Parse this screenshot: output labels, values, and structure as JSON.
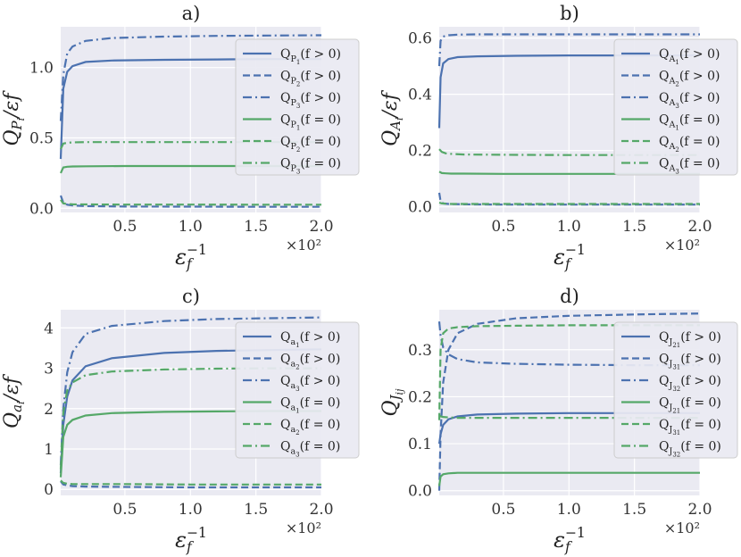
{
  "colors": {
    "blue": "#4c72b0",
    "green": "#55a868"
  },
  "chart_data": [
    {
      "type": "line",
      "title": "a)",
      "ylabel": "Q_{P_i}/ε_f",
      "xlabel": "ε_f^{-1}",
      "x_multiplier": "×10²",
      "xlim": [
        0.01,
        2.0
      ],
      "ylim": [
        -0.03,
        1.29
      ],
      "xticks": [
        "0.5",
        "1.0",
        "1.5",
        "2.0"
      ],
      "yticks": [
        "0.0",
        "0.5",
        "1.0"
      ],
      "legend_position": "upper-right",
      "series": [
        {
          "name": "Q_{P_1}(f > 0)",
          "sub": "P_1",
          "cond": "(f > 0)",
          "color": "blue",
          "dash": "solid",
          "x": [
            0.01,
            0.03,
            0.06,
            0.1,
            0.2,
            0.4,
            0.8,
            1.2,
            1.6,
            2.0
          ],
          "y": [
            0.35,
            0.85,
            0.97,
            1.01,
            1.04,
            1.05,
            1.055,
            1.058,
            1.06,
            1.06
          ]
        },
        {
          "name": "Q_{P_2}(f > 0)",
          "sub": "P_2",
          "cond": "(f > 0)",
          "color": "blue",
          "dash": "dashed",
          "x": [
            0.01,
            0.03,
            0.06,
            0.1,
            0.2,
            0.5,
            1.0,
            1.5,
            2.0
          ],
          "y": [
            0.09,
            0.04,
            0.025,
            0.02,
            0.015,
            0.012,
            0.011,
            0.01,
            0.01
          ]
        },
        {
          "name": "Q_{P_3}(f > 0)",
          "sub": "P_3",
          "cond": "(f > 0)",
          "color": "blue",
          "dash": "dashdot",
          "x": [
            0.01,
            0.03,
            0.06,
            0.1,
            0.2,
            0.4,
            0.8,
            1.2,
            1.6,
            2.0
          ],
          "y": [
            0.62,
            0.95,
            1.1,
            1.15,
            1.19,
            1.21,
            1.22,
            1.225,
            1.228,
            1.23
          ]
        },
        {
          "name": "Q_{P_1}(f = 0)",
          "sub": "P_1",
          "cond": "(f = 0)",
          "color": "green",
          "dash": "solid",
          "x": [
            0.01,
            0.03,
            0.06,
            0.1,
            0.2,
            0.5,
            1.0,
            1.5,
            2.0
          ],
          "y": [
            0.25,
            0.29,
            0.295,
            0.297,
            0.298,
            0.3,
            0.3,
            0.3,
            0.3
          ]
        },
        {
          "name": "Q_{P_2}(f = 0)",
          "sub": "P_2",
          "cond": "(f = 0)",
          "color": "green",
          "dash": "dashed",
          "x": [
            0.01,
            0.03,
            0.06,
            0.1,
            0.2,
            0.5,
            1.0,
            1.5,
            2.0
          ],
          "y": [
            0.06,
            0.035,
            0.03,
            0.028,
            0.027,
            0.026,
            0.026,
            0.025,
            0.025
          ]
        },
        {
          "name": "Q_{P_3}(f = 0)",
          "sub": "P_3",
          "cond": "(f = 0)",
          "color": "green",
          "dash": "dashdot",
          "x": [
            0.01,
            0.03,
            0.06,
            0.1,
            0.2,
            0.5,
            1.0,
            1.5,
            2.0
          ],
          "y": [
            0.42,
            0.46,
            0.465,
            0.468,
            0.47,
            0.47,
            0.47,
            0.47,
            0.47
          ]
        }
      ]
    },
    {
      "type": "line",
      "title": "b)",
      "ylabel": "Q_{A_i}/ε_f",
      "xlabel": "ε_f^{-1}",
      "x_multiplier": "×10²",
      "xlim": [
        0.01,
        2.0
      ],
      "ylim": [
        -0.02,
        0.64
      ],
      "xticks": [
        "0.5",
        "1.0",
        "1.5",
        "2.0"
      ],
      "yticks": [
        "0.0",
        "0.2",
        "0.4",
        "0.6"
      ],
      "legend_position": "upper-right",
      "series": [
        {
          "name": "Q_{A_1}(f > 0)",
          "sub": "A_1",
          "cond": "(f > 0)",
          "color": "blue",
          "dash": "solid",
          "x": [
            0.01,
            0.02,
            0.04,
            0.08,
            0.15,
            0.3,
            0.6,
            1.0,
            1.5,
            2.0
          ],
          "y": [
            0.28,
            0.46,
            0.51,
            0.525,
            0.532,
            0.535,
            0.537,
            0.538,
            0.538,
            0.538
          ]
        },
        {
          "name": "Q_{A_2}(f > 0)",
          "sub": "A_2",
          "cond": "(f > 0)",
          "color": "blue",
          "dash": "dashed",
          "x": [
            0.01,
            0.02,
            0.04,
            0.08,
            0.2,
            0.5,
            1.0,
            1.5,
            2.0
          ],
          "y": [
            0.05,
            0.02,
            0.012,
            0.01,
            0.009,
            0.008,
            0.008,
            0.008,
            0.008
          ]
        },
        {
          "name": "Q_{A_3}(f > 0)",
          "sub": "A_3",
          "cond": "(f > 0)",
          "color": "blue",
          "dash": "dashdot",
          "x": [
            0.01,
            0.02,
            0.04,
            0.08,
            0.15,
            0.3,
            0.6,
            1.0,
            1.5,
            2.0
          ],
          "y": [
            0.5,
            0.59,
            0.605,
            0.61,
            0.612,
            0.613,
            0.613,
            0.613,
            0.613,
            0.613
          ]
        },
        {
          "name": "Q_{A_1}(f = 0)",
          "sub": "A_1",
          "cond": "(f = 0)",
          "color": "green",
          "dash": "solid",
          "x": [
            0.01,
            0.03,
            0.06,
            0.1,
            0.2,
            0.5,
            1.0,
            1.5,
            2.0
          ],
          "y": [
            0.125,
            0.12,
            0.119,
            0.118,
            0.118,
            0.117,
            0.117,
            0.117,
            0.117
          ]
        },
        {
          "name": "Q_{A_2}(f = 0)",
          "sub": "A_2",
          "cond": "(f = 0)",
          "color": "green",
          "dash": "dashed",
          "x": [
            0.01,
            0.03,
            0.06,
            0.1,
            0.2,
            0.5,
            1.0,
            1.5,
            2.0
          ],
          "y": [
            0.015,
            0.012,
            0.011,
            0.01,
            0.01,
            0.01,
            0.01,
            0.01,
            0.01
          ]
        },
        {
          "name": "Q_{A_3}(f = 0)",
          "sub": "A_3",
          "cond": "(f = 0)",
          "color": "green",
          "dash": "dashdot",
          "x": [
            0.01,
            0.03,
            0.06,
            0.1,
            0.2,
            0.5,
            1.0,
            1.5,
            2.0
          ],
          "y": [
            0.205,
            0.195,
            0.19,
            0.188,
            0.186,
            0.185,
            0.184,
            0.184,
            0.184
          ]
        }
      ]
    },
    {
      "type": "line",
      "title": "c)",
      "ylabel": "Q_{a_i}/ε_f",
      "xlabel": "ε_f^{-1}",
      "x_multiplier": "×10²",
      "xlim": [
        0.01,
        2.0
      ],
      "ylim": [
        -0.15,
        4.45
      ],
      "xticks": [
        "0.5",
        "1.0",
        "1.5",
        "2.0"
      ],
      "yticks": [
        "0",
        "1",
        "2",
        "3",
        "4"
      ],
      "legend_position": "upper-right",
      "series": [
        {
          "name": "Q_{a_1}(f > 0)",
          "sub": "a_1",
          "cond": "(f > 0)",
          "color": "blue",
          "dash": "solid",
          "x": [
            0.01,
            0.03,
            0.06,
            0.1,
            0.2,
            0.4,
            0.8,
            1.2,
            1.6,
            2.0
          ],
          "y": [
            0.4,
            1.6,
            2.3,
            2.7,
            3.05,
            3.25,
            3.38,
            3.43,
            3.45,
            3.47
          ]
        },
        {
          "name": "Q_{a_2}(f > 0)",
          "sub": "a_2",
          "cond": "(f > 0)",
          "color": "blue",
          "dash": "dashed",
          "x": [
            0.01,
            0.03,
            0.06,
            0.1,
            0.2,
            0.5,
            1.0,
            1.5,
            2.0
          ],
          "y": [
            0.2,
            0.12,
            0.1,
            0.08,
            0.07,
            0.06,
            0.05,
            0.05,
            0.05
          ]
        },
        {
          "name": "Q_{a_3}(f > 0)",
          "sub": "a_3",
          "cond": "(f > 0)",
          "color": "blue",
          "dash": "dashdot",
          "x": [
            0.01,
            0.03,
            0.06,
            0.1,
            0.2,
            0.4,
            0.8,
            1.2,
            1.6,
            2.0
          ],
          "y": [
            0.6,
            2.0,
            2.9,
            3.4,
            3.85,
            4.05,
            4.17,
            4.22,
            4.24,
            4.26
          ]
        },
        {
          "name": "Q_{a_1}(f = 0)",
          "sub": "a_1",
          "cond": "(f = 0)",
          "color": "green",
          "dash": "solid",
          "x": [
            0.01,
            0.03,
            0.06,
            0.1,
            0.2,
            0.4,
            0.8,
            1.2,
            1.6,
            2.0
          ],
          "y": [
            0.3,
            1.3,
            1.6,
            1.72,
            1.83,
            1.89,
            1.92,
            1.93,
            1.94,
            1.94
          ]
        },
        {
          "name": "Q_{a_2}(f = 0)",
          "sub": "a_2",
          "cond": "(f = 0)",
          "color": "green",
          "dash": "dashed",
          "x": [
            0.01,
            0.03,
            0.06,
            0.1,
            0.2,
            0.5,
            1.0,
            1.5,
            2.0
          ],
          "y": [
            0.22,
            0.16,
            0.14,
            0.13,
            0.13,
            0.13,
            0.12,
            0.12,
            0.12
          ]
        },
        {
          "name": "Q_{a_3}(f = 0)",
          "sub": "a_3",
          "cond": "(f = 0)",
          "color": "green",
          "dash": "dashdot",
          "x": [
            0.01,
            0.03,
            0.06,
            0.1,
            0.2,
            0.4,
            0.8,
            1.2,
            1.6,
            2.0
          ],
          "y": [
            0.5,
            1.9,
            2.45,
            2.65,
            2.83,
            2.92,
            2.97,
            2.99,
            3.0,
            3.0
          ]
        }
      ]
    },
    {
      "type": "line",
      "title": "d)",
      "ylabel": "Q_{J_{ij}}",
      "xlabel": "ε_f^{-1}",
      "x_multiplier": "×10²",
      "xlim": [
        0.01,
        2.0
      ],
      "ylim": [
        -0.01,
        0.385
      ],
      "xticks": [
        "0.5",
        "1.0",
        "1.5",
        "2.0"
      ],
      "yticks": [
        "0.0",
        "0.1",
        "0.2",
        "0.3"
      ],
      "legend_position": "upper-right",
      "series": [
        {
          "name": "Q_{J_{21}}(f > 0)",
          "sub": "J_21",
          "cond": "(f > 0)",
          "color": "blue",
          "dash": "solid",
          "x": [
            0.01,
            0.02,
            0.04,
            0.08,
            0.15,
            0.3,
            0.6,
            1.0,
            1.5,
            2.0
          ],
          "y": [
            0.1,
            0.12,
            0.14,
            0.152,
            0.158,
            0.162,
            0.164,
            0.165,
            0.165,
            0.165
          ]
        },
        {
          "name": "Q_{J_{31}}(f > 0)",
          "sub": "J_31",
          "cond": "(f > 0)",
          "color": "blue",
          "dash": "dashed",
          "x": [
            0.01,
            0.02,
            0.04,
            0.08,
            0.15,
            0.3,
            0.6,
            1.0,
            1.5,
            2.0
          ],
          "y": [
            0.0,
            0.12,
            0.23,
            0.3,
            0.335,
            0.355,
            0.367,
            0.372,
            0.375,
            0.377
          ]
        },
        {
          "name": "Q_{J_{32}}(f > 0)",
          "sub": "J_32",
          "cond": "(f > 0)",
          "color": "blue",
          "dash": "dashdot",
          "x": [
            0.01,
            0.02,
            0.04,
            0.08,
            0.15,
            0.3,
            0.6,
            1.0,
            1.5,
            2.0
          ],
          "y": [
            0.36,
            0.33,
            0.305,
            0.29,
            0.28,
            0.273,
            0.27,
            0.268,
            0.267,
            0.267
          ]
        },
        {
          "name": "Q_{J_{21}}(f = 0)",
          "sub": "J_21",
          "cond": "(f = 0)",
          "color": "green",
          "dash": "solid",
          "x": [
            0.01,
            0.02,
            0.04,
            0.08,
            0.15,
            0.3,
            0.6,
            1.0,
            1.5,
            2.0
          ],
          "y": [
            0.01,
            0.03,
            0.035,
            0.037,
            0.038,
            0.038,
            0.038,
            0.038,
            0.038,
            0.038
          ]
        },
        {
          "name": "Q_{J_{31}}(f = 0)",
          "sub": "J_31",
          "cond": "(f = 0)",
          "color": "green",
          "dash": "dashed",
          "x": [
            0.01,
            0.02,
            0.04,
            0.08,
            0.15,
            0.3,
            0.6,
            1.0,
            1.5,
            2.0
          ],
          "y": [
            0.15,
            0.3,
            0.335,
            0.345,
            0.348,
            0.35,
            0.351,
            0.352,
            0.352,
            0.352
          ]
        },
        {
          "name": "Q_{J_{32}}(f = 0)",
          "sub": "J_32",
          "cond": "(f = 0)",
          "color": "green",
          "dash": "dashdot",
          "x": [
            0.01,
            0.02,
            0.04,
            0.08,
            0.15,
            0.3,
            0.6,
            1.0,
            1.5,
            2.0
          ],
          "y": [
            0.16,
            0.158,
            0.157,
            0.156,
            0.155,
            0.155,
            0.155,
            0.155,
            0.155,
            0.155
          ]
        }
      ]
    }
  ]
}
